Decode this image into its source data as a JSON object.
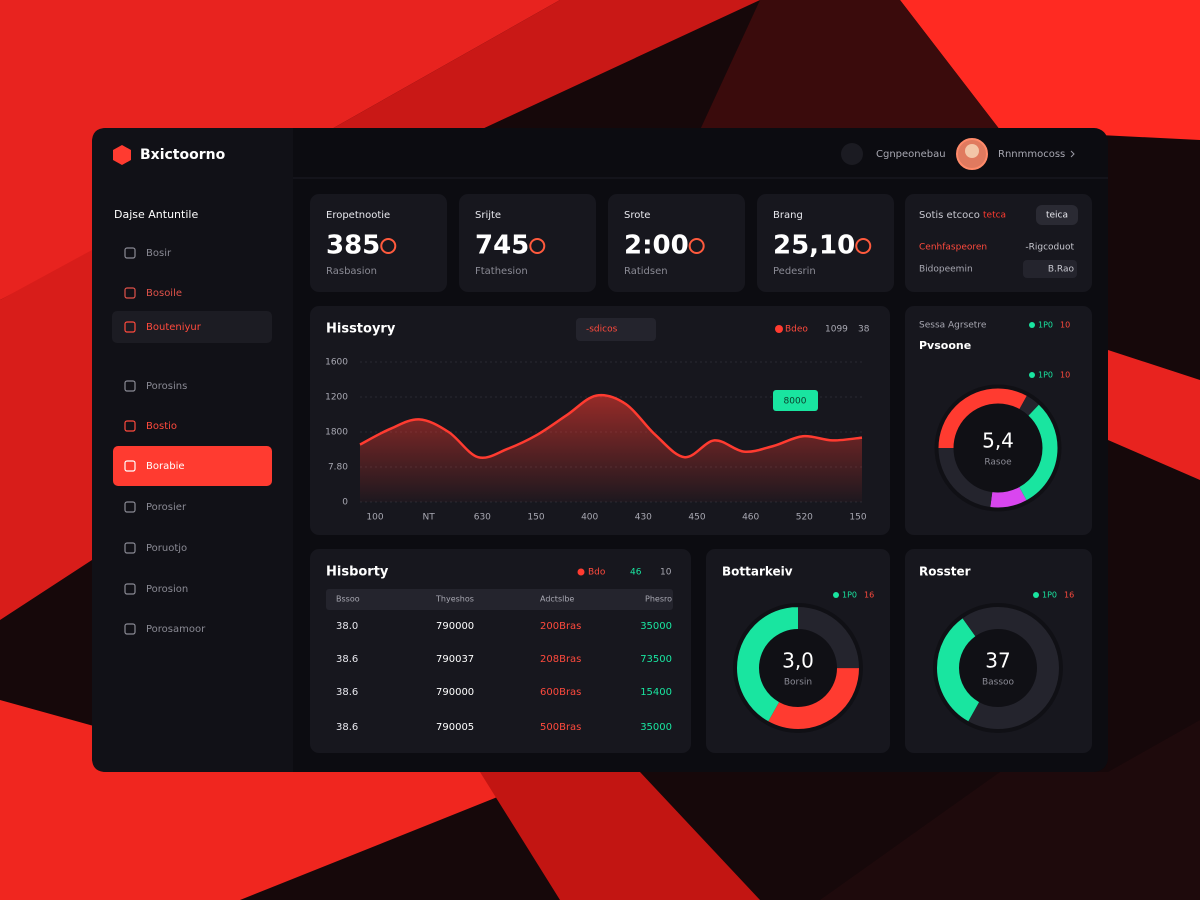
{
  "brand": "Bxictoorno",
  "header": {
    "search": "Cgnpeonebau",
    "user": "Rnnmmocoss"
  },
  "sidebar": {
    "title": "Dajse Antuntile",
    "items": [
      {
        "label": "Bosir",
        "color": "#8a8a94"
      },
      {
        "label": "Bosoile",
        "color": "#e0524a"
      },
      {
        "label": "Bouteniyur",
        "color": "#ff4a3d",
        "selected": true
      },
      {
        "label": "Porosins",
        "color": "#8a8a94"
      },
      {
        "label": "Bostio",
        "color": "#ff4a3d"
      },
      {
        "label": "Borabie",
        "color": "#ffffff",
        "active": true
      },
      {
        "label": "Porosier",
        "color": "#8a8a94"
      },
      {
        "label": "Poruotjo",
        "color": "#8a8a94"
      },
      {
        "label": "Porosion",
        "color": "#8a8a94"
      },
      {
        "label": "Porosamoor",
        "color": "#8a8a94"
      }
    ]
  },
  "stats": [
    {
      "label": "Eropetnootie",
      "value": "385",
      "sub": "Rasbasion"
    },
    {
      "label": "Srijte",
      "value": "745",
      "sub": "Ftathesion"
    },
    {
      "label": "Srote",
      "value": "2:00",
      "sub": "Ratidsen"
    },
    {
      "label": "Brang",
      "value": "25,10",
      "sub": "Pedesrin"
    }
  ],
  "settings": {
    "title": "Sotis etcoco",
    "note": "tetca",
    "button": "teica",
    "rows": [
      {
        "label": "Cenhfaspeoren",
        "value": "-Rigcoduot"
      },
      {
        "label": "Bidopeemin",
        "value": "B.Rao"
      }
    ]
  },
  "history_chart": {
    "title": "Hisstoyry",
    "filter": "-sdicos",
    "legend": [
      "Bdeo",
      "1099",
      "38"
    ],
    "y_labels": [
      "1600",
      "1200",
      "1800",
      "7.80",
      "0"
    ],
    "x_labels": [
      "100",
      "NT",
      "630",
      "150",
      "400",
      "430",
      "450",
      "460",
      "520",
      "150"
    ],
    "tooltip": "8000",
    "color": "#ff3b30",
    "ylim": [
      0,
      100
    ],
    "values": [
      41,
      52,
      59,
      50,
      32,
      38,
      48,
      62,
      76,
      70,
      48,
      32,
      44,
      36,
      40,
      47,
      44,
      46
    ]
  },
  "gauge": {
    "title": "Sessa Agrsetre",
    "legend": [
      "1P0",
      "10"
    ],
    "subtitle": "Pvsoone",
    "legend2": [
      "1P0",
      "10"
    ],
    "center": "5,4",
    "center_sub": "Rasoe",
    "segments": [
      {
        "value": 33,
        "color": "#ff3b30"
      },
      {
        "value": 4,
        "color": "#24242d"
      },
      {
        "value": 30,
        "color": "#19e5a0"
      },
      {
        "value": 10,
        "color": "#d946ef"
      },
      {
        "value": 23,
        "color": "#24242d"
      }
    ]
  },
  "table": {
    "title": "Hisborty",
    "legend": [
      "Bdo",
      "46",
      "10"
    ],
    "columns": [
      "Bssoo",
      "Thyeshos",
      "Adctslbe",
      "Phesro"
    ],
    "rows": [
      [
        "38.0",
        "790000",
        "200Bras",
        "35000"
      ],
      [
        "38.6",
        "790037",
        "208Bras",
        "73500"
      ],
      [
        "38.6",
        "790000",
        "600Bras",
        "15400"
      ],
      [
        "38.6",
        "790005",
        "500Bras",
        "35000"
      ]
    ]
  },
  "donut_a": {
    "title": "Bottarkeiv",
    "legend": [
      "1P0",
      "16"
    ],
    "center": "3,0",
    "center_sub": "Borsin",
    "segments": [
      {
        "value": 25,
        "color": "#24242d"
      },
      {
        "value": 33,
        "color": "#ff3b30"
      },
      {
        "value": 42,
        "color": "#19e5a0"
      }
    ]
  },
  "donut_b": {
    "title": "Rosster",
    "legend": [
      "1P0",
      "16"
    ],
    "center": "37",
    "center_sub": "Bassoo",
    "segments": [
      {
        "value": 58,
        "color": "#24242d"
      },
      {
        "value": 32,
        "color": "#19e5a0"
      },
      {
        "value": 10,
        "color": "#24242d"
      }
    ]
  }
}
